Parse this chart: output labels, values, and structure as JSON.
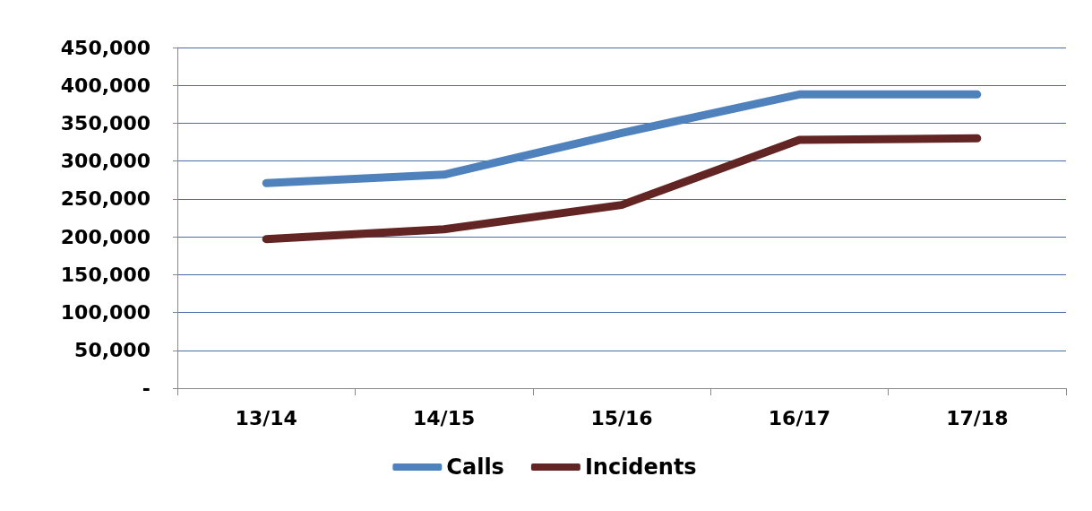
{
  "chart_data": {
    "type": "line",
    "categories": [
      "13/14",
      "14/15",
      "15/16",
      "16/17",
      "17/18"
    ],
    "series": [
      {
        "name": "Calls",
        "color": "#4f81bd",
        "values": [
          271000,
          282000,
          337000,
          388000,
          388000
        ]
      },
      {
        "name": "Incidents",
        "color": "#632523",
        "values": [
          197000,
          210000,
          242000,
          328000,
          330000
        ]
      }
    ],
    "ylim": [
      0,
      450000
    ],
    "yticks": [
      {
        "value": 0,
        "label": "-"
      },
      {
        "value": 50000,
        "label": "50,000"
      },
      {
        "value": 100000,
        "label": "100,000"
      },
      {
        "value": 150000,
        "label": "150,000"
      },
      {
        "value": 200000,
        "label": "200,000"
      },
      {
        "value": 250000,
        "label": "250,000"
      },
      {
        "value": 300000,
        "label": "300,000"
      },
      {
        "value": 350000,
        "label": "350,000"
      },
      {
        "value": 400000,
        "label": "400,000"
      },
      {
        "value": 450000,
        "label": "450,000"
      }
    ],
    "grid": "y",
    "legend": "bottom",
    "marker": "none",
    "line_style": "solid"
  }
}
